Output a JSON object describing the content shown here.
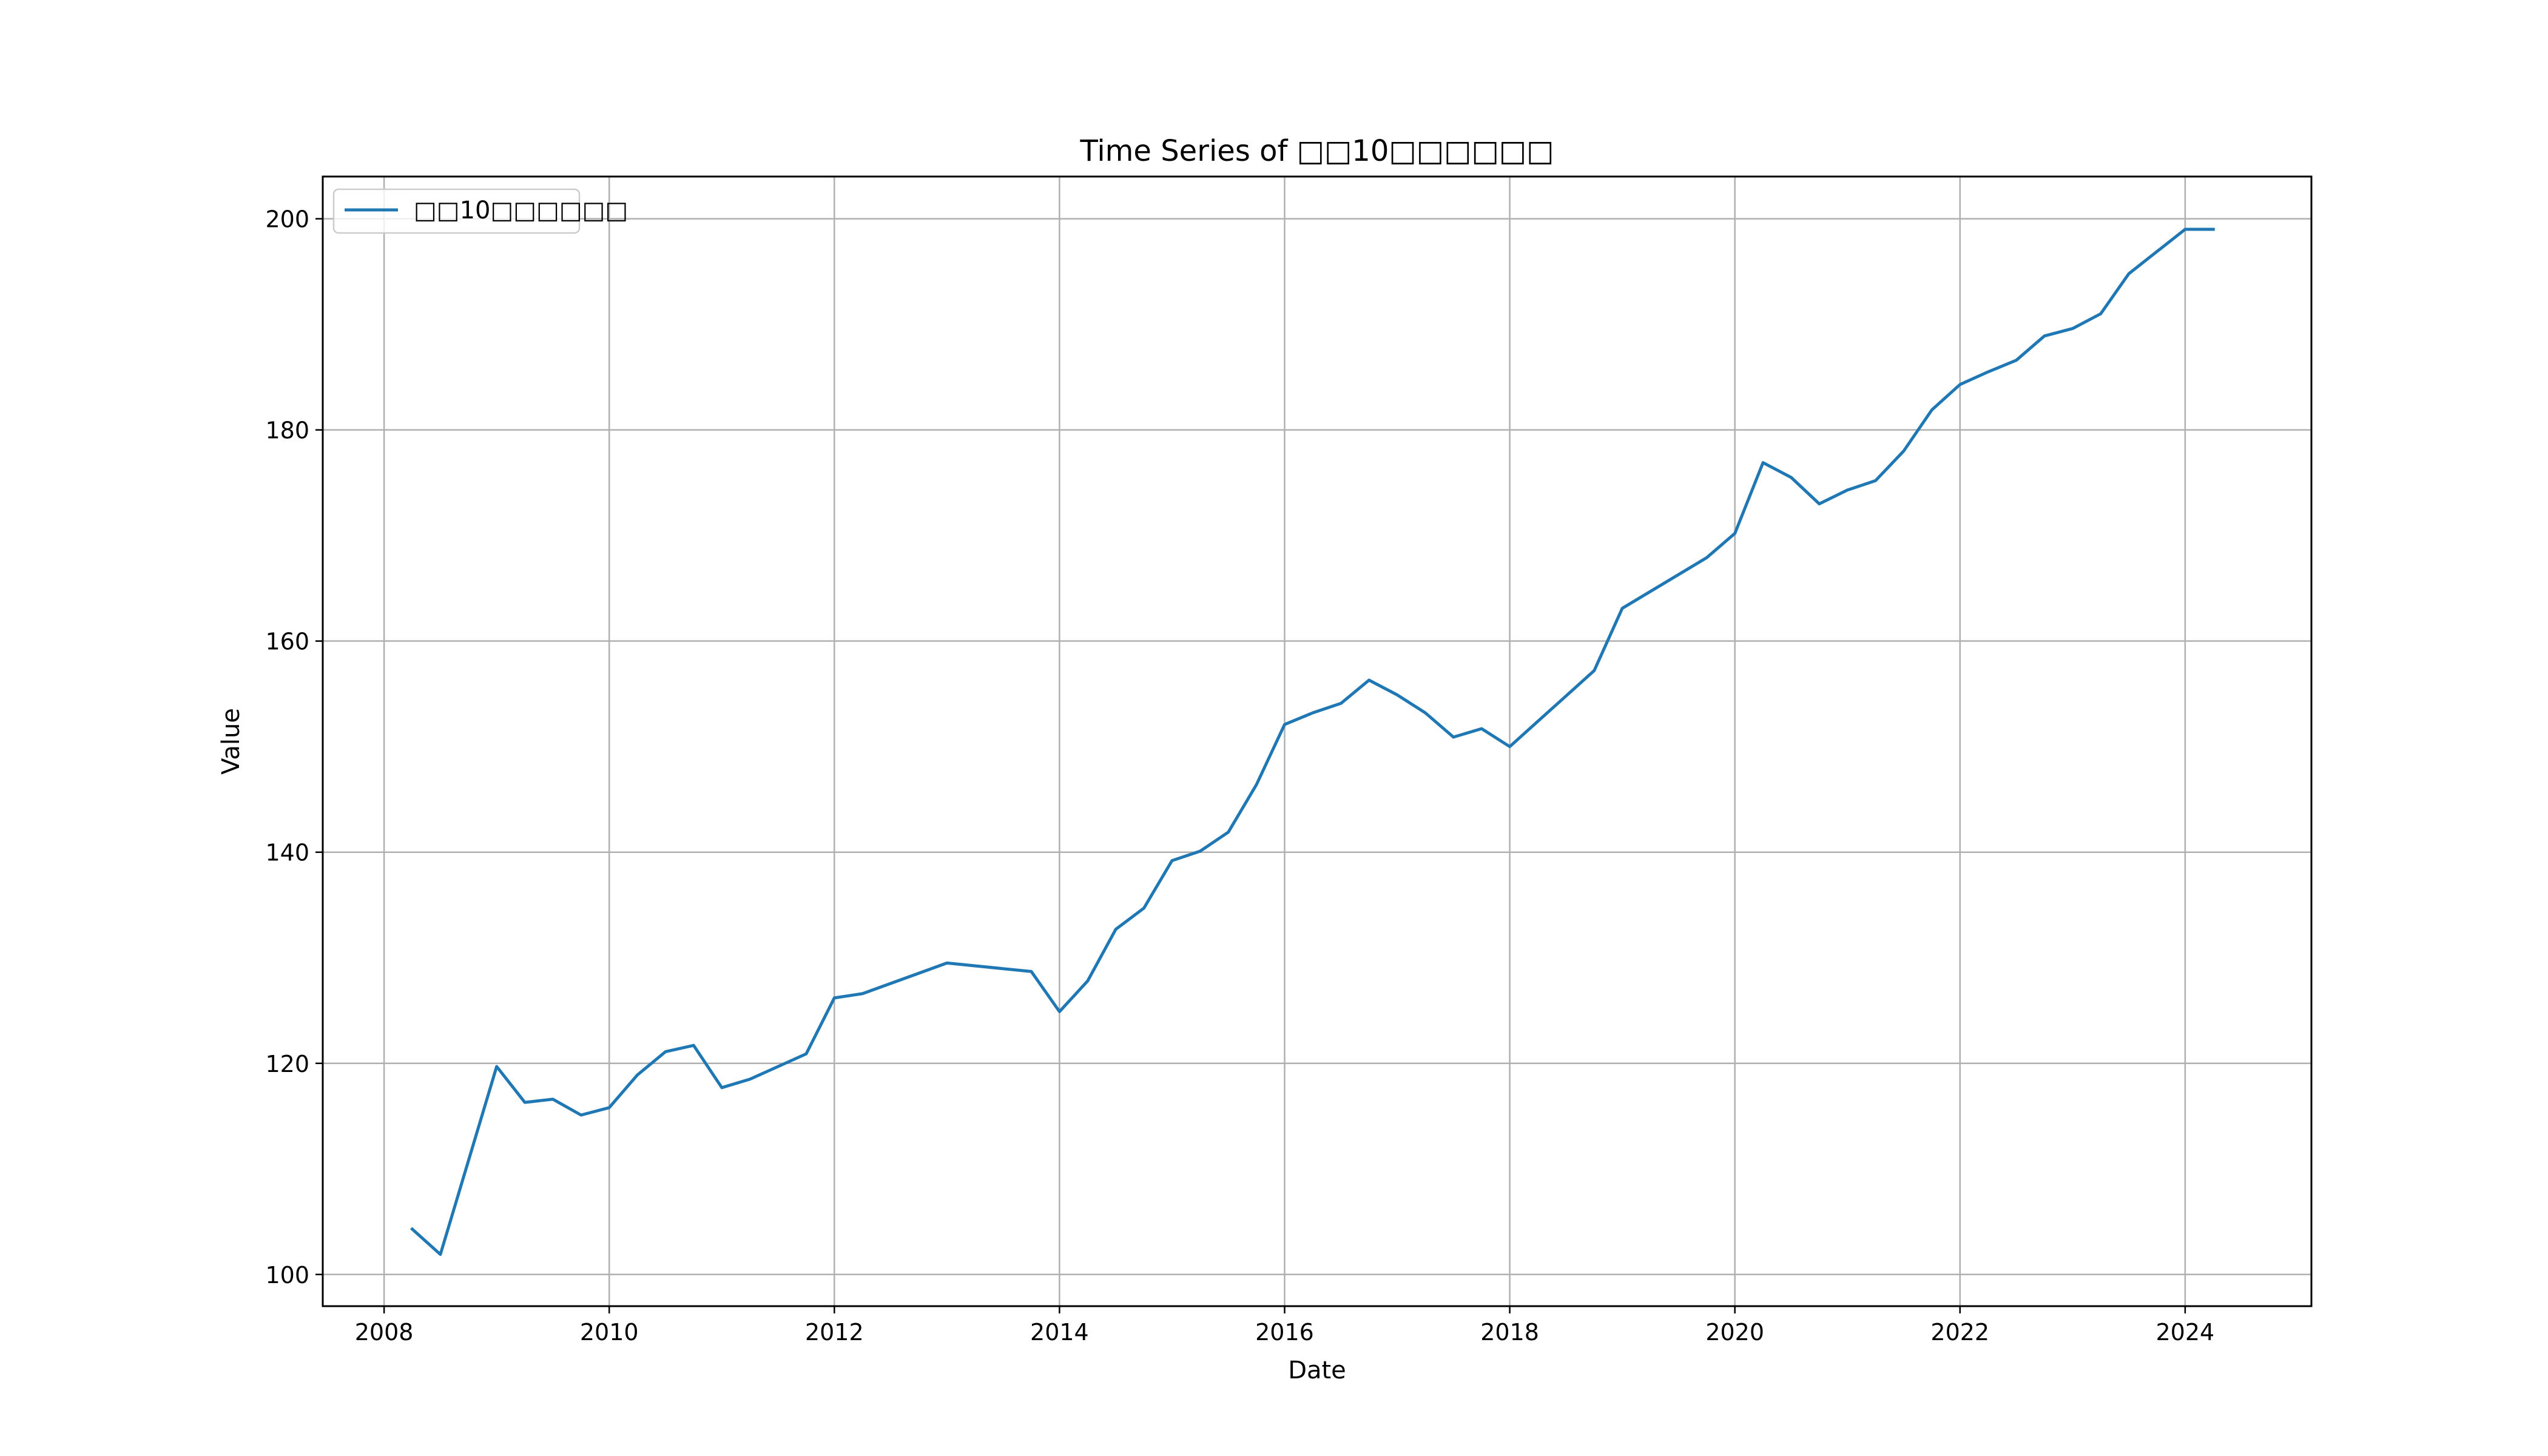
{
  "chart_data": {
    "type": "line",
    "title": "Time Series of □□10□□□□□□",
    "xlabel": "Date",
    "ylabel": "Value",
    "xlim": [
      "2007-06-15",
      "2025-02-15"
    ],
    "ylim": [
      97,
      204
    ],
    "xticks": [
      "2008",
      "2010",
      "2012",
      "2014",
      "2016",
      "2018",
      "2020",
      "2022",
      "2024"
    ],
    "yticks": [
      "100",
      "120",
      "140",
      "160",
      "180",
      "200"
    ],
    "grid": true,
    "legend_position": "upper-left",
    "colors": {
      "line": "#1f77b4",
      "grid": "#b0b0b0",
      "axes": "#000000"
    },
    "series": [
      {
        "name": "□□10□□□□□□",
        "x": [
          "2008-04",
          "2008-07",
          "2009-01",
          "2009-04",
          "2009-07",
          "2009-10",
          "2010-01",
          "2010-04",
          "2010-07",
          "2010-10",
          "2011-01",
          "2011-04",
          "2011-07",
          "2011-10",
          "2012-01",
          "2012-04",
          "2013-01",
          "2013-10",
          "2014-01",
          "2014-04",
          "2014-07",
          "2014-10",
          "2015-01",
          "2015-04",
          "2015-07",
          "2015-10",
          "2016-01",
          "2016-04",
          "2016-07",
          "2016-10",
          "2017-01",
          "2017-04",
          "2017-07",
          "2017-10",
          "2018-01",
          "2018-04",
          "2018-07",
          "2018-10",
          "2019-01",
          "2019-10",
          "2020-01",
          "2020-04",
          "2020-07",
          "2020-10",
          "2021-01",
          "2021-04",
          "2021-07",
          "2021-10",
          "2022-01",
          "2022-04",
          "2022-07",
          "2022-10",
          "2023-01",
          "2023-04",
          "2023-07",
          "2024-01",
          "2024-04"
        ],
        "values": [
          104.3,
          101.9,
          119.7,
          116.3,
          116.6,
          115.1,
          115.8,
          118.9,
          121.1,
          121.7,
          117.7,
          118.5,
          119.7,
          120.9,
          126.2,
          126.6,
          129.5,
          128.7,
          124.9,
          127.8,
          132.7,
          134.7,
          139.2,
          140.1,
          141.9,
          146.4,
          152.1,
          153.2,
          154.1,
          156.3,
          154.9,
          153.2,
          150.9,
          151.7,
          150.0,
          152.4,
          154.8,
          157.2,
          163.1,
          167.9,
          170.2,
          176.9,
          175.5,
          173.0,
          174.3,
          175.2,
          178.0,
          181.9,
          184.3,
          185.5,
          186.6,
          188.9,
          189.6,
          191.0,
          194.8,
          199.0,
          199.0
        ]
      }
    ]
  }
}
